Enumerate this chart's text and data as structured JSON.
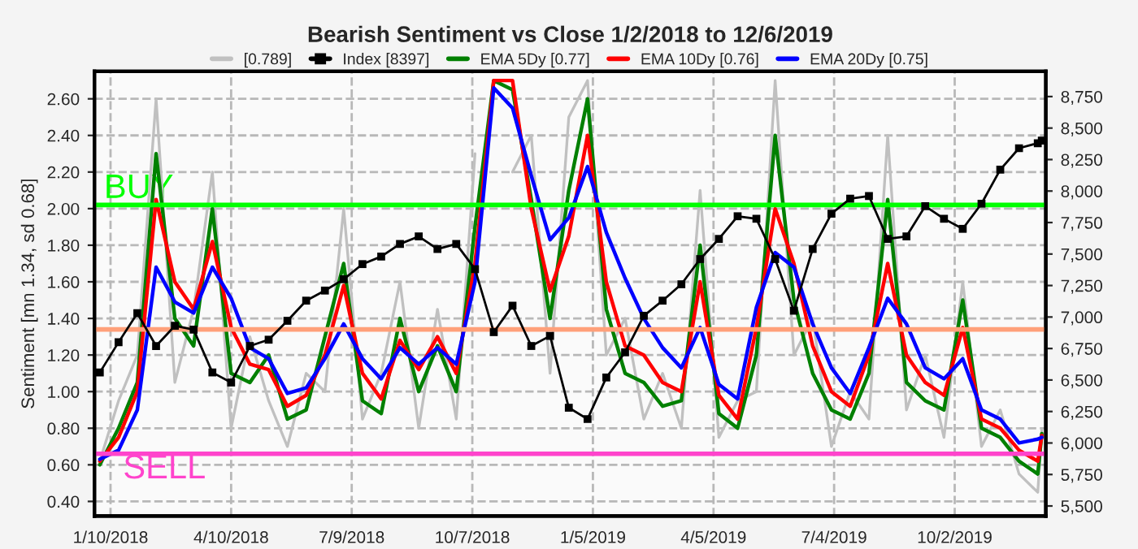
{
  "chart_data": {
    "type": "line",
    "title": "Bearish Sentiment vs Close 1/2/2018 to 12/6/2019",
    "ylabel": "Sentiment [mn 1.34, sd 0.68]",
    "x": [
      "2018-01-02",
      "2018-01-16",
      "2018-01-30",
      "2018-02-13",
      "2018-02-27",
      "2018-03-13",
      "2018-03-27",
      "2018-04-10",
      "2018-04-24",
      "2018-05-08",
      "2018-05-22",
      "2018-06-05",
      "2018-06-19",
      "2018-07-03",
      "2018-07-17",
      "2018-07-31",
      "2018-08-14",
      "2018-08-28",
      "2018-09-11",
      "2018-09-25",
      "2018-10-09",
      "2018-10-23",
      "2018-11-06",
      "2018-11-20",
      "2018-12-04",
      "2018-12-18",
      "2019-01-01",
      "2019-01-15",
      "2019-01-29",
      "2019-02-12",
      "2019-02-26",
      "2019-03-12",
      "2019-03-26",
      "2019-04-09",
      "2019-04-23",
      "2019-05-07",
      "2019-05-21",
      "2019-06-04",
      "2019-06-18",
      "2019-07-02",
      "2019-07-16",
      "2019-07-30",
      "2019-08-13",
      "2019-08-27",
      "2019-09-10",
      "2019-09-24",
      "2019-10-08",
      "2019-10-22",
      "2019-11-05",
      "2019-11-19",
      "2019-12-03",
      "2019-12-06"
    ],
    "series": [
      {
        "name": "[0.789]",
        "color": "#c0c0c0",
        "marker": "none",
        "values": [
          0.62,
          0.95,
          1.2,
          2.6,
          1.05,
          1.45,
          2.2,
          0.8,
          1.3,
          0.95,
          0.7,
          1.1,
          1.0,
          2.0,
          0.85,
          1.1,
          1.6,
          0.8,
          1.45,
          0.85,
          2.3,
          null,
          2.2,
          2.4,
          1.1,
          2.5,
          2.7,
          1.2,
          1.4,
          0.85,
          1.1,
          0.8,
          2.1,
          0.75,
          0.95,
          1.0,
          2.7,
          1.2,
          1.4,
          0.7,
          1.0,
          0.85,
          2.4,
          0.9,
          1.2,
          0.75,
          1.6,
          0.7,
          0.9,
          0.55,
          0.45,
          0.79
        ]
      },
      {
        "name": "Index [8397]",
        "color": "#000000",
        "marker": "square",
        "axis": "y2",
        "values": [
          6560,
          6800,
          7030,
          6770,
          6930,
          6900,
          6560,
          6480,
          6770,
          6820,
          6970,
          7130,
          7210,
          7300,
          7420,
          7480,
          7580,
          7640,
          7540,
          7580,
          7380,
          6880,
          7090,
          6770,
          6850,
          6280,
          6190,
          6520,
          6720,
          7010,
          7130,
          7260,
          7460,
          7620,
          7800,
          7780,
          7460,
          7050,
          7540,
          7820,
          7940,
          7960,
          7620,
          7640,
          7880,
          7780,
          7700,
          7900,
          8170,
          8340,
          8380,
          8400
        ]
      },
      {
        "name": "EMA 5Dy [0.77]",
        "color": "#008000",
        "marker": "none",
        "values": [
          0.6,
          0.8,
          1.05,
          2.3,
          1.4,
          1.25,
          2.0,
          1.1,
          1.05,
          1.2,
          0.85,
          0.9,
          1.3,
          1.7,
          0.95,
          0.88,
          1.4,
          1.0,
          1.25,
          1.0,
          1.9,
          2.7,
          2.65,
          2.05,
          1.4,
          2.1,
          2.6,
          1.45,
          1.1,
          1.05,
          0.92,
          0.95,
          1.8,
          0.88,
          0.8,
          1.2,
          2.4,
          1.5,
          1.1,
          0.9,
          0.85,
          1.1,
          2.05,
          1.05,
          0.95,
          0.9,
          1.5,
          0.8,
          0.75,
          0.62,
          0.55,
          0.77
        ]
      },
      {
        "name": "EMA 10Dy [0.76]",
        "color": "#ff0000",
        "marker": "none",
        "values": [
          0.62,
          0.75,
          1.0,
          2.05,
          1.6,
          1.45,
          1.82,
          1.35,
          1.15,
          1.12,
          0.92,
          0.98,
          1.2,
          1.58,
          1.1,
          0.96,
          1.28,
          1.12,
          1.3,
          1.1,
          1.7,
          2.7,
          2.7,
          2.0,
          1.55,
          1.85,
          2.4,
          1.6,
          1.25,
          1.2,
          1.05,
          1.0,
          1.6,
          0.98,
          0.85,
          1.35,
          2.0,
          1.7,
          1.25,
          1.0,
          0.92,
          1.2,
          1.7,
          1.2,
          1.05,
          0.98,
          1.35,
          0.85,
          0.8,
          0.68,
          0.62,
          0.76
        ]
      },
      {
        "name": "EMA 20Dy [0.75]",
        "color": "#0000ff",
        "marker": "none",
        "values": [
          0.63,
          0.68,
          0.9,
          1.68,
          1.49,
          1.43,
          1.68,
          1.51,
          1.24,
          1.18,
          0.99,
          1.02,
          1.18,
          1.37,
          1.18,
          1.07,
          1.24,
          1.15,
          1.24,
          1.15,
          1.6,
          2.66,
          2.55,
          2.18,
          1.83,
          1.95,
          2.23,
          1.87,
          1.62,
          1.4,
          1.24,
          1.13,
          1.35,
          1.04,
          0.96,
          1.46,
          1.76,
          1.68,
          1.37,
          1.13,
          0.99,
          1.24,
          1.51,
          1.37,
          1.13,
          1.07,
          1.18,
          0.9,
          0.85,
          0.72,
          0.74,
          0.75
        ]
      }
    ],
    "ref_lines": [
      {
        "axis": "y",
        "value": 2.02,
        "label": "BUY",
        "color": "#00ff00"
      },
      {
        "axis": "y",
        "value": 1.34,
        "color": "#ffa07a"
      },
      {
        "axis": "y",
        "value": 0.66,
        "label": "SELL",
        "color": "#ff44cc"
      }
    ],
    "xlim": [
      "2017-12-29",
      "2019-12-09"
    ],
    "xticks": [
      {
        "value": "2018-01-10",
        "label": "1/10/2018"
      },
      {
        "value": "2018-04-10",
        "label": "4/10/2018"
      },
      {
        "value": "2018-07-09",
        "label": "7/9/2018"
      },
      {
        "value": "2018-10-07",
        "label": "10/7/2018"
      },
      {
        "value": "2019-01-05",
        "label": "1/5/2019"
      },
      {
        "value": "2019-04-05",
        "label": "4/5/2019"
      },
      {
        "value": "2019-07-04",
        "label": "7/4/2019"
      },
      {
        "value": "2019-10-02",
        "label": "10/2/2019"
      }
    ],
    "ylim": [
      0.32,
      2.75
    ],
    "yticks": [
      {
        "value": 0.4,
        "label": "0.40"
      },
      {
        "value": 0.6,
        "label": "0.60"
      },
      {
        "value": 0.8,
        "label": "0.80"
      },
      {
        "value": 1.0,
        "label": "1.00"
      },
      {
        "value": 1.2,
        "label": "1.20"
      },
      {
        "value": 1.4,
        "label": "1.40"
      },
      {
        "value": 1.6,
        "label": "1.60"
      },
      {
        "value": 1.8,
        "label": "1.80"
      },
      {
        "value": 2.0,
        "label": "2.00"
      },
      {
        "value": 2.2,
        "label": "2.20"
      },
      {
        "value": 2.4,
        "label": "2.40"
      },
      {
        "value": 2.6,
        "label": "2.60"
      }
    ],
    "y2lim": [
      5420,
      8950
    ],
    "y2ticks": [
      {
        "value": 5500,
        "label": "5,500"
      },
      {
        "value": 5750,
        "label": "5,750"
      },
      {
        "value": 6000,
        "label": "6,000"
      },
      {
        "value": 6250,
        "label": "6,250"
      },
      {
        "value": 6500,
        "label": "6,500"
      },
      {
        "value": 6750,
        "label": "6,750"
      },
      {
        "value": 7000,
        "label": "7,000"
      },
      {
        "value": 7250,
        "label": "7,250"
      },
      {
        "value": 7500,
        "label": "7,500"
      },
      {
        "value": 7750,
        "label": "7,750"
      },
      {
        "value": 8000,
        "label": "8,000"
      },
      {
        "value": 8250,
        "label": "8,250"
      },
      {
        "value": 8500,
        "label": "8,500"
      },
      {
        "value": 8750,
        "label": "8,750"
      }
    ],
    "grid": true,
    "legend": "top"
  }
}
